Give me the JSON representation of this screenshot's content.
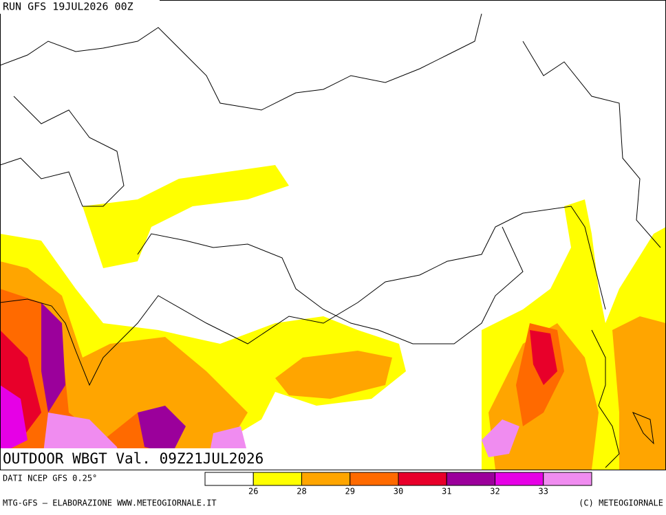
{
  "header": {
    "run": "RUN GFS 19JUL2026 00Z"
  },
  "map": {
    "title": "OUTDOOR WBGT Val. 09Z21JUL2026"
  },
  "legend": {
    "source": "DATI NCEP GFS 0.25°",
    "colors": [
      "#ffffff",
      "#ffff00",
      "#ffa500",
      "#ff6a00",
      "#e8002a",
      "#9b009b",
      "#e600e6",
      "#f08cf0"
    ],
    "ticks": [
      26,
      28,
      29,
      30,
      31,
      32,
      33
    ]
  },
  "footer": {
    "left": "MTG-GFS — ELABORAZIONE WWW.METEOGIORNALE.IT",
    "right": "(C) METEOGIORNALE"
  }
}
